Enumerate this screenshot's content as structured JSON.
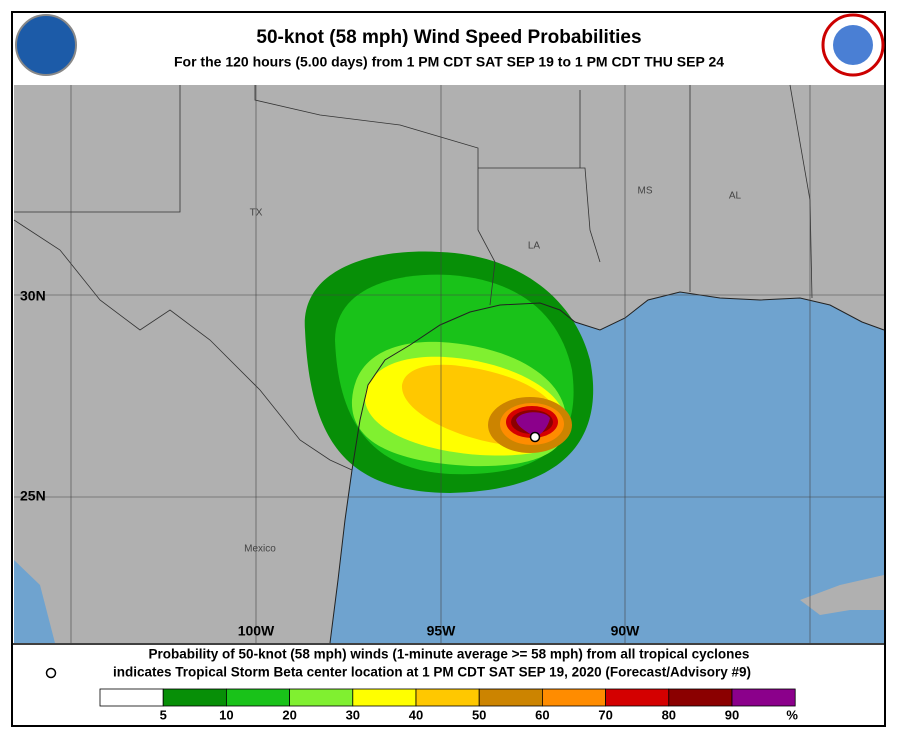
{
  "header": {
    "title": "50-knot (58 mph) Wind Speed Probabilities",
    "subtitle": "For the 120 hours (5.00 days) from 1 PM CDT SAT SEP 19 to 1 PM CDT THU SEP 24"
  },
  "map": {
    "regions": [
      "TX",
      "LA",
      "MS",
      "AL",
      "Mexico"
    ],
    "lat_labels": [
      "30N",
      "25N"
    ],
    "lon_labels": [
      "100W",
      "95W",
      "90W"
    ]
  },
  "footer": {
    "line1": "Probability of 50-knot (58 mph) winds (1-minute average >= 58 mph) from all tropical cyclones",
    "line2": "indicates Tropical Storm Beta center location at 1 PM CDT SAT SEP 19, 2020 (Forecast/Advisory #9)"
  },
  "legend": {
    "colors": [
      "#ffffff",
      "#078f07",
      "#19c219",
      "#80f030",
      "#ffff00",
      "#ffc800",
      "#cc8400",
      "#ff8c00",
      "#d40000",
      "#8b0000",
      "#8b008b"
    ],
    "ticks": [
      5,
      10,
      20,
      30,
      40,
      50,
      60,
      70,
      80,
      90
    ],
    "unit": "%"
  }
}
